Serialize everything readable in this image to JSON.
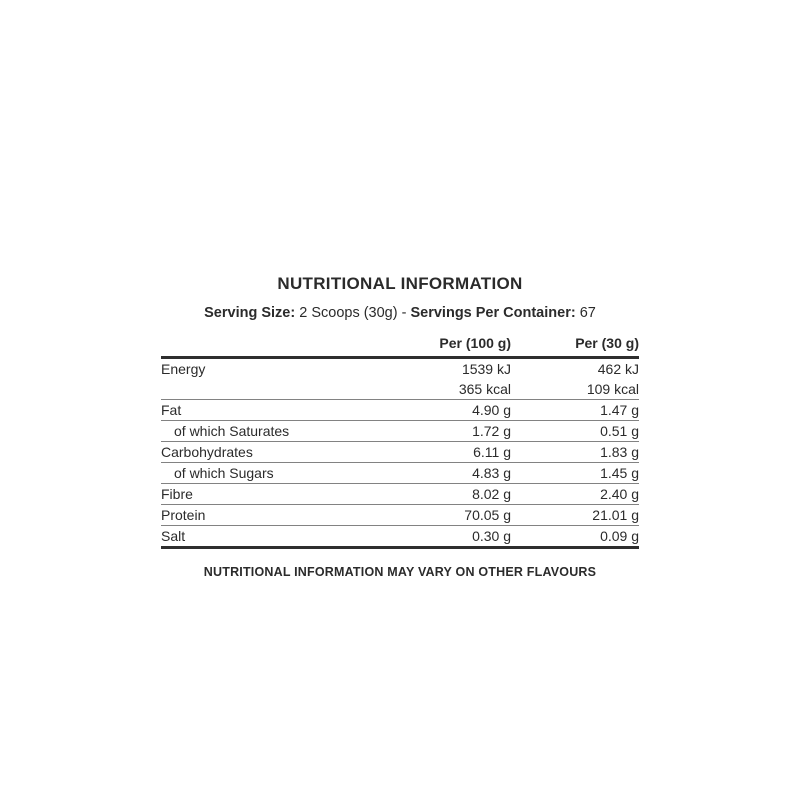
{
  "title": "NUTRITIONAL INFORMATION",
  "serving_line": {
    "serving_size_label": "Serving Size:",
    "serving_size_value": "2 Scoops (30g)",
    "separator": "-",
    "servings_label": "Servings Per Container:",
    "servings_value": "67"
  },
  "table": {
    "columns": {
      "label": "",
      "per_100g": "Per (100 g)",
      "per_30g": "Per (30 g)"
    },
    "rows": [
      {
        "label": "Energy",
        "per_100g": "1539 kJ",
        "per_30g": "462 kJ",
        "indent": false,
        "rule_below": "none"
      },
      {
        "label": "",
        "per_100g": "365 kcal",
        "per_30g": "109 kcal",
        "indent": false,
        "rule_below": "thin"
      },
      {
        "label": "Fat",
        "per_100g": "4.90 g",
        "per_30g": "1.47 g",
        "indent": false,
        "rule_below": "thin"
      },
      {
        "label": "of which Saturates",
        "per_100g": "1.72 g",
        "per_30g": "0.51 g",
        "indent": true,
        "rule_below": "thin"
      },
      {
        "label": "Carbohydrates",
        "per_100g": "6.11 g",
        "per_30g": "1.83 g",
        "indent": false,
        "rule_below": "thin"
      },
      {
        "label": "of which Sugars",
        "per_100g": "4.83 g",
        "per_30g": "1.45 g",
        "indent": true,
        "rule_below": "thin"
      },
      {
        "label": "Fibre",
        "per_100g": "8.02 g",
        "per_30g": "2.40 g",
        "indent": false,
        "rule_below": "thin"
      },
      {
        "label": "Protein",
        "per_100g": "70.05 g",
        "per_30g": "21.01 g",
        "indent": false,
        "rule_below": "thin"
      },
      {
        "label": "Salt",
        "per_100g": "0.30 g",
        "per_30g": "0.09 g",
        "indent": false,
        "rule_below": "thick"
      }
    ]
  },
  "footer": "NUTRITIONAL INFORMATION MAY VARY ON OTHER FLAVOURS",
  "colors": {
    "text": "#2b2b2b",
    "rule_heavy": "#2e2e2e",
    "rule_light": "#828282",
    "background": "#ffffff"
  }
}
